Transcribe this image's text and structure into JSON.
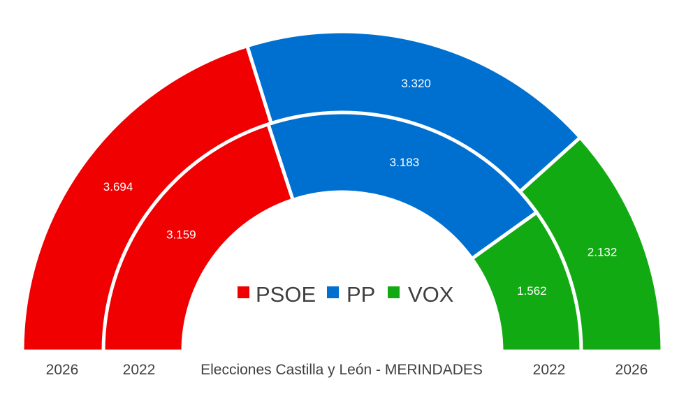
{
  "chart_data": {
    "type": "pie",
    "subtype": "double-half-donut",
    "title": "Elecciones Castilla y León - MERINDADES",
    "parties": [
      "PSOE",
      "PP",
      "VOX"
    ],
    "colors": {
      "PSOE": "#f00000",
      "PP": "#0070d0",
      "VOX": "#12aa12"
    },
    "series": [
      {
        "name": "2026",
        "ring": "outer",
        "values": [
          3694,
          3320,
          2132
        ],
        "labels": [
          "3.694",
          "3.320",
          "2.132"
        ]
      },
      {
        "name": "2022",
        "ring": "inner",
        "values": [
          3159,
          3183,
          1562
        ],
        "labels": [
          "3.159",
          "3.183",
          "1.562"
        ]
      }
    ],
    "legend": {
      "position": "center",
      "items": [
        "PSOE",
        "PP",
        "VOX"
      ]
    },
    "year_labels": {
      "left_outer": "2026",
      "left_inner": "2022",
      "right_inner": "2022",
      "right_outer": "2026"
    }
  }
}
